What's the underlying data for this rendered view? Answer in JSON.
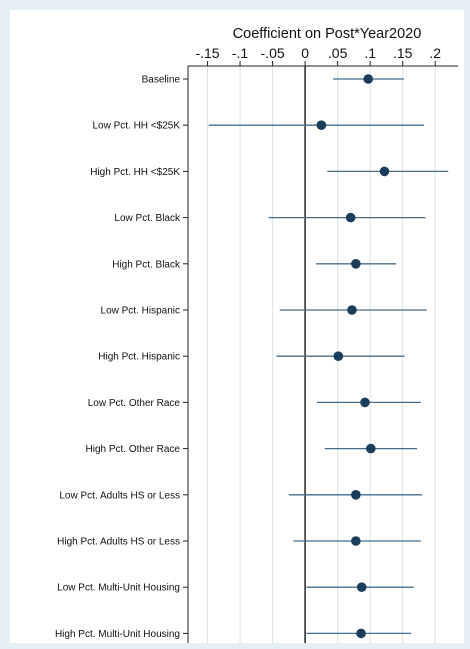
{
  "chart_data": {
    "type": "scatter",
    "subtype": "coefficient-plot-with-confidence-intervals",
    "title": "",
    "xlabel": "Coefficient on Post*Year2020",
    "ylabel": "",
    "x_axis_position": "top",
    "xlim": [
      -0.18,
      0.235
    ],
    "x_ticks": [
      -0.15,
      -0.1,
      -0.05,
      0,
      0.05,
      0.1,
      0.15,
      0.2
    ],
    "x_tick_labels": [
      "-.15",
      "-.1",
      "-.05",
      "0",
      ".05",
      ".1",
      ".15",
      ".2"
    ],
    "grid": "vertical",
    "reference_line": 0,
    "legend": "none",
    "categories": [
      "Baseline",
      "Low Pct. HH <$25K",
      "High Pct. HH <$25K",
      "Low Pct. Black",
      "High Pct. Black",
      "Low Pct. Hispanic",
      "High Pct. Hispanic",
      "Low Pct. Other Race",
      "High Pct. Other Race",
      "Low Pct. Adults HS or Less",
      "High Pct. Adults HS or Less",
      "Low Pct. Multi-Unit Housing",
      "High Pct. Multi-Unit Housing"
    ],
    "series": [
      {
        "estimate": [
          0.097,
          0.025,
          0.122,
          0.07,
          0.078,
          0.072,
          0.051,
          0.092,
          0.101,
          0.078,
          0.078,
          0.087,
          0.086
        ],
        "ci_low": [
          0.043,
          -0.148,
          0.034,
          -0.056,
          0.017,
          -0.039,
          -0.044,
          0.018,
          0.03,
          -0.025,
          -0.018,
          0.002,
          0.002
        ],
        "ci_high": [
          0.152,
          0.183,
          0.22,
          0.185,
          0.14,
          0.187,
          0.153,
          0.178,
          0.172,
          0.18,
          0.178,
          0.167,
          0.163
        ]
      }
    ],
    "colors": {
      "marker": "#1b3d5c",
      "ci_line": "#456d8c",
      "grid": "#dde3e7",
      "zero_line": "#333333"
    }
  }
}
